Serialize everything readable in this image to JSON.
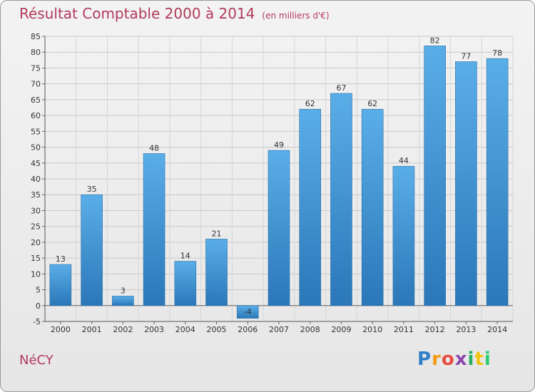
{
  "chart_data": {
    "type": "bar",
    "title": "Résultat Comptable 2000 à 2014",
    "subtitle": "(en milliers d'€)",
    "categories": [
      "2000",
      "2001",
      "2002",
      "2003",
      "2004",
      "2005",
      "2006",
      "2007",
      "2008",
      "2009",
      "2010",
      "2011",
      "2012",
      "2013",
      "2014"
    ],
    "values": [
      13,
      35,
      3,
      48,
      14,
      21,
      -4,
      49,
      62,
      67,
      62,
      44,
      82,
      77,
      78
    ],
    "ylim": [
      -5,
      85
    ],
    "yticks": [
      -5,
      0,
      5,
      10,
      15,
      20,
      25,
      30,
      35,
      40,
      45,
      50,
      55,
      60,
      65,
      70,
      75,
      80,
      85
    ],
    "grid": true,
    "bar_color": "#3a8fd1",
    "bar_color_light": "#5aaee8",
    "bar_color_dark": "#2b77b8"
  },
  "place": "NéCY",
  "logo": {
    "letters": [
      "P",
      "r",
      "o",
      "x",
      "i",
      "t",
      "i"
    ],
    "colors": [
      "#2f7fc8",
      "#f39c12",
      "#e74c3c",
      "#8e44ad",
      "#27ae60",
      "#f1c40f",
      "#2ecc71"
    ]
  }
}
